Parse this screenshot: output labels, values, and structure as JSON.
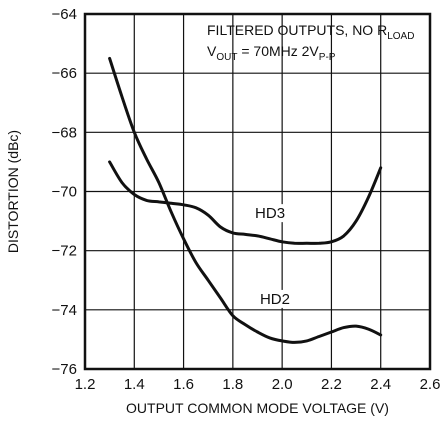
{
  "chart_data": {
    "type": "line",
    "title": "",
    "xlabel": "OUTPUT COMMON MODE VOLTAGE (V)",
    "ylabel": "DISTORTION (dBc)",
    "xlim": [
      1.2,
      2.6
    ],
    "ylim": [
      -76,
      -64
    ],
    "xticks": [
      1.2,
      1.4,
      1.6,
      1.8,
      2.0,
      2.2,
      2.4,
      2.6
    ],
    "yticks": [
      -76,
      -74,
      -72,
      -70,
      -68,
      -66,
      -64
    ],
    "xtick_labels": [
      "1.2",
      "1.4",
      "1.6",
      "1.8",
      "2.0",
      "2.2",
      "2.4",
      "2.6"
    ],
    "ytick_labels": [
      "−76",
      "−74",
      "−72",
      "−70",
      "−68",
      "−66",
      "−64"
    ],
    "grid": true,
    "legend": "none",
    "annotation": {
      "line1": "FILTERED OUTPUTS, NO R",
      "line1_sub": "LOAD",
      "line2_a": "V",
      "line2_a_sub": "OUT",
      "line2_b": " = 70MHz 2V",
      "line2_b_sub": "P-P"
    },
    "series": [
      {
        "name": "HD2",
        "x": [
          1.3,
          1.35,
          1.4,
          1.45,
          1.5,
          1.55,
          1.6,
          1.65,
          1.7,
          1.75,
          1.8,
          1.85,
          1.9,
          1.95,
          2.0,
          2.05,
          2.1,
          2.15,
          2.2,
          2.25,
          2.3,
          2.35,
          2.4
        ],
        "y": [
          -65.5,
          -66.8,
          -68.0,
          -68.9,
          -69.7,
          -70.7,
          -71.6,
          -72.4,
          -73.0,
          -73.6,
          -74.2,
          -74.5,
          -74.75,
          -74.95,
          -75.05,
          -75.1,
          -75.05,
          -74.9,
          -74.75,
          -74.6,
          -74.55,
          -74.65,
          -74.85
        ]
      },
      {
        "name": "HD3",
        "x": [
          1.3,
          1.35,
          1.4,
          1.45,
          1.5,
          1.55,
          1.6,
          1.65,
          1.7,
          1.75,
          1.8,
          1.85,
          1.9,
          1.95,
          2.0,
          2.05,
          2.1,
          2.15,
          2.2,
          2.25,
          2.3,
          2.35,
          2.4
        ],
        "y": [
          -69.0,
          -69.7,
          -70.1,
          -70.3,
          -70.35,
          -70.4,
          -70.45,
          -70.55,
          -70.8,
          -71.2,
          -71.4,
          -71.45,
          -71.5,
          -71.6,
          -71.7,
          -71.75,
          -71.75,
          -71.75,
          -71.7,
          -71.5,
          -71.0,
          -70.2,
          -69.2
        ]
      }
    ],
    "series_label_positions": [
      {
        "name": "HD2",
        "x": 1.91,
        "y": -73.8
      },
      {
        "name": "HD3",
        "x": 1.89,
        "y": -70.9
      }
    ],
    "line_color": "#111111",
    "grid_color": "#111111"
  }
}
